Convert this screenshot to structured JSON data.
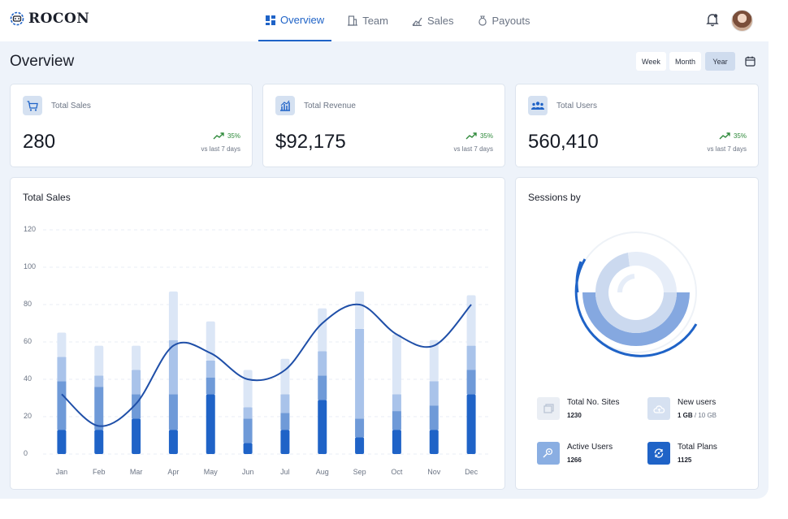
{
  "header": {
    "logo_text": "ROCON",
    "nav": [
      {
        "label": "Overview",
        "icon": "grid-icon",
        "active": true
      },
      {
        "label": "Team",
        "icon": "building-icon",
        "active": false
      },
      {
        "label": "Sales",
        "icon": "chart-icon",
        "active": false
      },
      {
        "label": "Payouts",
        "icon": "money-bag-icon",
        "active": false
      }
    ]
  },
  "page": {
    "title": "Overview",
    "ranges": [
      "Week",
      "Month",
      "Year"
    ],
    "active_range": "Year"
  },
  "kpis": [
    {
      "label": "Total Sales",
      "value": "280",
      "change": "35%",
      "sub": "vs last 7 days",
      "icon": "cart-icon"
    },
    {
      "label": "Total Revenue",
      "value": "$92,175",
      "change": "35%",
      "sub": "vs last 7 days",
      "icon": "revenue-icon"
    },
    {
      "label": "Total Users",
      "value": "560,410",
      "change": "35%",
      "sub": "vs last 7 days",
      "icon": "users-icon"
    }
  ],
  "sales_card": {
    "title": "Total Sales"
  },
  "sessions_card": {
    "title": "Sessions by",
    "legend": [
      {
        "label": "Total No. Sites",
        "value": "1230",
        "extra": "",
        "icon": "sites-icon"
      },
      {
        "label": "New users",
        "value": "1 GB",
        "extra": " / 10 GB",
        "icon": "cloud-icon"
      },
      {
        "label": "Active Users",
        "value": "1266",
        "extra": "",
        "icon": "active-users-icon"
      },
      {
        "label": "Total Plans",
        "value": "1125",
        "extra": "",
        "icon": "plans-icon"
      }
    ]
  },
  "colors": {
    "accent": "#1f63c7",
    "bar_dark": "#1f63c7",
    "bar_mid": "#6f9ad8",
    "bar_light": "#a9c3ea",
    "bar_pale": "#dbe6f6",
    "line": "#1f4fa8",
    "positive": "#2f8a3b"
  },
  "chart_data": {
    "type": "bar",
    "categories": [
      "Jan",
      "Feb",
      "Mar",
      "Apr",
      "May",
      "Jun",
      "Jul",
      "Aug",
      "Sep",
      "Oct",
      "Nov",
      "Dec"
    ],
    "ylim": [
      0,
      120
    ],
    "yticks": [
      0,
      20,
      40,
      60,
      80,
      100,
      120
    ],
    "grid": true,
    "stacked": true,
    "series": [
      {
        "values": [
          13,
          13,
          19,
          13,
          32,
          6,
          13,
          29,
          9,
          13,
          13,
          32
        ]
      },
      {
        "values": [
          26,
          23,
          13,
          19,
          9,
          13,
          9,
          13,
          10,
          10,
          13,
          13
        ]
      },
      {
        "values": [
          13,
          6,
          13,
          29,
          9,
          6,
          10,
          13,
          48,
          9,
          13,
          13
        ]
      },
      {
        "values": [
          13,
          16,
          13,
          26,
          21,
          20,
          19,
          23,
          20,
          32,
          22,
          27
        ]
      }
    ],
    "line": {
      "values": [
        32,
        15,
        27,
        58,
        54,
        40,
        45,
        70,
        80,
        64,
        58,
        80
      ]
    }
  }
}
